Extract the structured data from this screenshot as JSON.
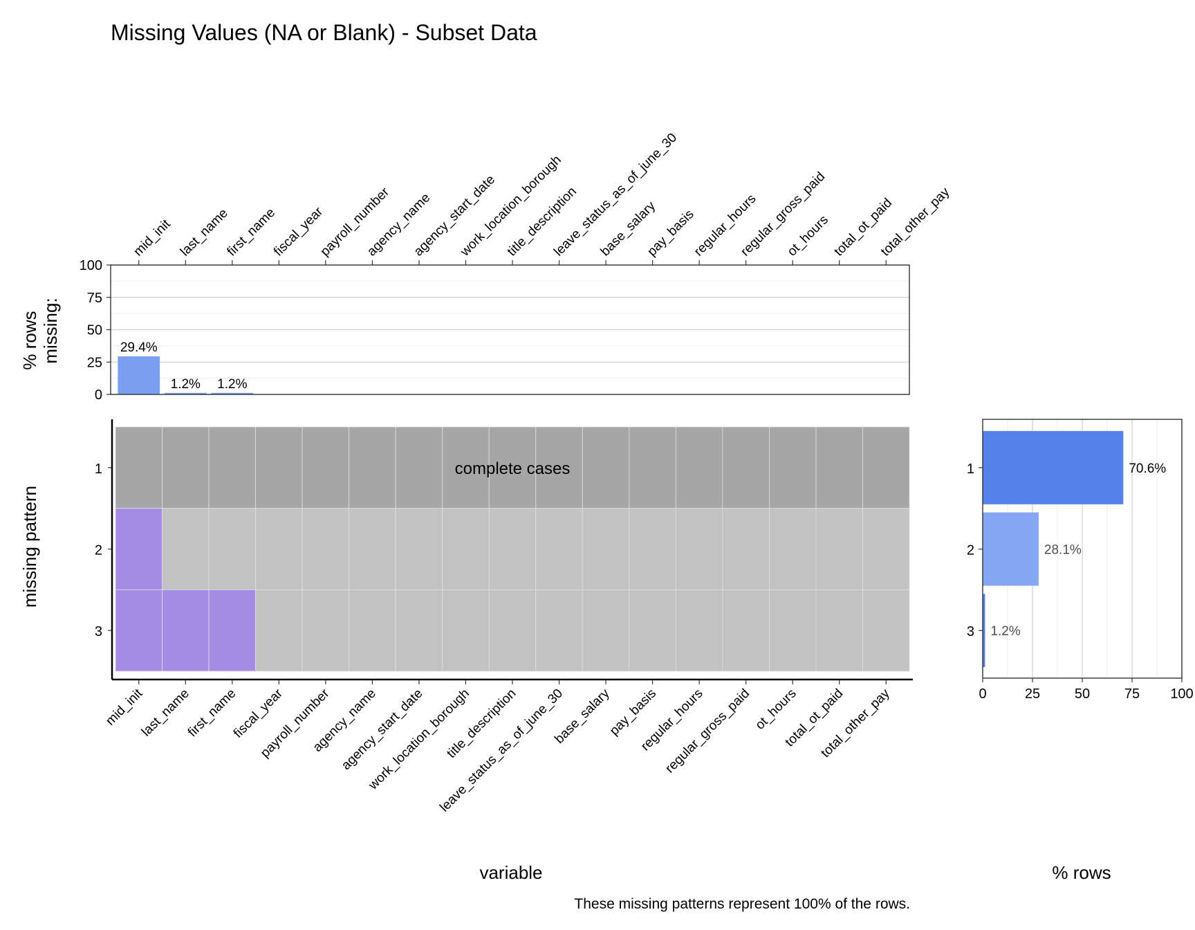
{
  "chart_data": {
    "title": "Missing Values (NA or Blank) - Subset Data",
    "caption": "These missing patterns represent 100% of the rows.",
    "variables": [
      "mid_init",
      "last_name",
      "first_name",
      "fiscal_year",
      "payroll_number",
      "agency_name",
      "agency_start_date",
      "work_location_borough",
      "title_description",
      "leave_status_as_of_june_30",
      "base_salary",
      "pay_basis",
      "regular_hours",
      "regular_gross_paid",
      "ot_hours",
      "total_ot_paid",
      "total_other_pay"
    ],
    "top_bar": {
      "type": "bar",
      "ylabel_line1": "% rows",
      "ylabel_line2": "missing:",
      "ylim": [
        0,
        100
      ],
      "yticks": [
        0,
        25,
        50,
        75,
        100
      ],
      "values": [
        29.4,
        1.2,
        1.2,
        0,
        0,
        0,
        0,
        0,
        0,
        0,
        0,
        0,
        0,
        0,
        0,
        0,
        0
      ],
      "labels": [
        "29.4%",
        "1.2%",
        "1.2%"
      ],
      "color": "#7A9EF0"
    },
    "patterns": {
      "type": "heatmap",
      "ylabel": "missing pattern",
      "xlabel": "variable",
      "rows": [
        "1",
        "2",
        "3"
      ],
      "missing": [
        [],
        [
          "mid_init"
        ],
        [
          "mid_init",
          "last_name",
          "first_name"
        ]
      ],
      "complete_label": "complete cases",
      "colors": {
        "complete": "#A6A6A6",
        "present": "#C2C2C2",
        "missing": "#A58BE3",
        "grid": "#E0E0E0"
      }
    },
    "side_bar": {
      "type": "bar",
      "xlabel": "% rows",
      "xlim": [
        0,
        100
      ],
      "xticks": [
        0,
        25,
        50,
        75,
        100
      ],
      "categories": [
        "1",
        "2",
        "3"
      ],
      "values": [
        70.6,
        28.1,
        1.2
      ],
      "labels": [
        "70.6%",
        "28.1%",
        "1.2%"
      ],
      "colors": [
        "#5582E8",
        "#85A6F0",
        "#5582E8"
      ]
    }
  }
}
